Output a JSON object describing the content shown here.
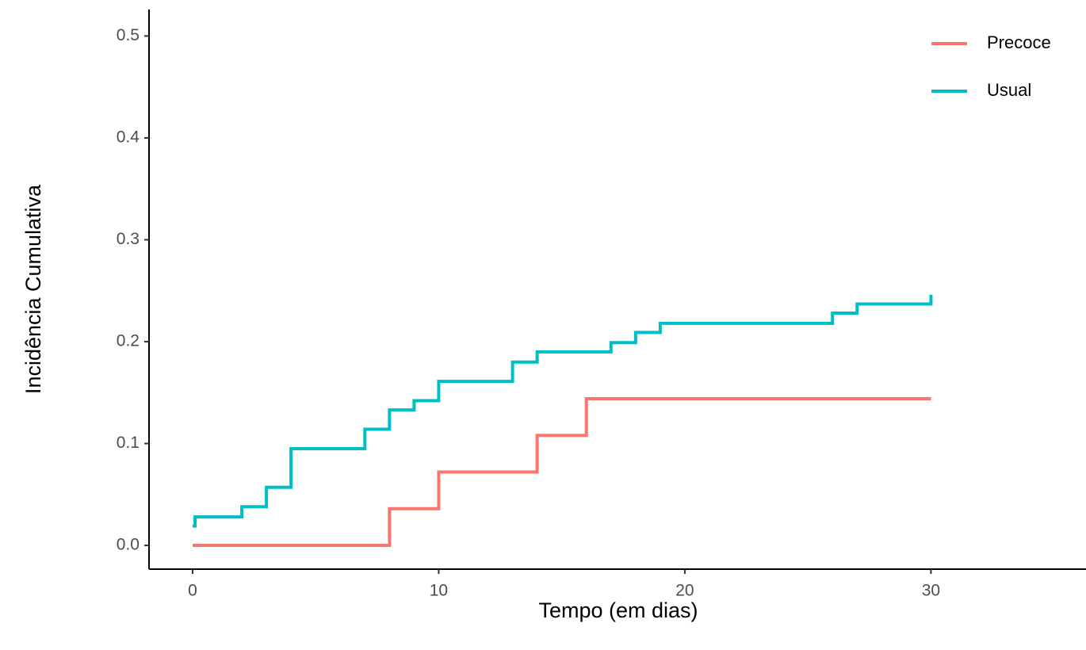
{
  "chart_data": {
    "type": "line",
    "drawstyle": "steps-post",
    "xlabel": "Tempo (em dias)",
    "ylabel": "Incidência Cumulativa",
    "xlim": [
      -1.77,
      36.3
    ],
    "ylim": [
      -0.0233,
      0.526
    ],
    "xticks": [
      0,
      10,
      20,
      30
    ],
    "yticks": [
      {
        "value": 0,
        "label": "0.0"
      },
      0.1,
      0.2,
      0.3,
      0.4,
      0.5
    ],
    "grid": false,
    "legend": "top-right",
    "series": [
      {
        "name": "Precoce",
        "color": "#F8766D",
        "x": [
          0,
          8,
          10,
          14,
          16,
          30
        ],
        "values": [
          0,
          0.036,
          0.072,
          0.108,
          0.144,
          0.144
        ]
      },
      {
        "name": "Usual",
        "color": "#00BFC4",
        "x": [
          0,
          0.1,
          2,
          3,
          4,
          7,
          8,
          9,
          10,
          13,
          14,
          17,
          18,
          19,
          26,
          27,
          30
        ],
        "values": [
          0.019,
          0.028,
          0.038,
          0.057,
          0.095,
          0.114,
          0.133,
          0.142,
          0.161,
          0.18,
          0.19,
          0.199,
          0.209,
          0.218,
          0.228,
          0.237,
          0.246
        ]
      }
    ]
  }
}
